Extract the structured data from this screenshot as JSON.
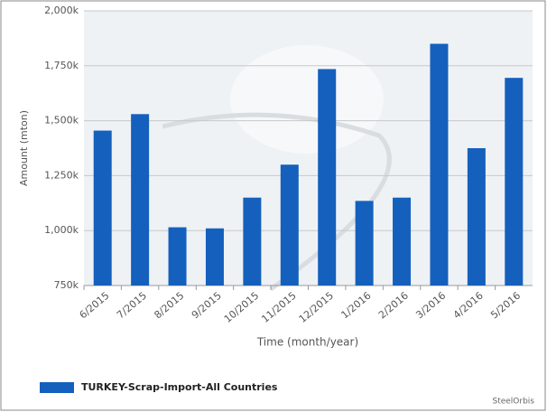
{
  "chart_data": {
    "type": "bar",
    "x_label": "Time (month/year)",
    "y_label": "Amount (mton)",
    "categories": [
      "6/2015",
      "7/2015",
      "8/2015",
      "9/2015",
      "10/2015",
      "11/2015",
      "12/2015",
      "1/2016",
      "2/2016",
      "3/2016",
      "4/2016",
      "5/2016"
    ],
    "series": [
      {
        "name": "TURKEY-Scrap-Import-All Countries",
        "color": "#1560bd",
        "values": [
          1455000,
          1530000,
          1015000,
          1010000,
          1150000,
          1300000,
          1735000,
          1135000,
          1150000,
          1850000,
          1375000,
          1695000
        ]
      }
    ],
    "ylim": [
      750000,
      2000000
    ],
    "yticks": [
      {
        "value": 750000,
        "label": "750k"
      },
      {
        "value": 1000000,
        "label": "1,000k"
      },
      {
        "value": 1250000,
        "label": "1,250k"
      },
      {
        "value": 1500000,
        "label": "1,500k"
      },
      {
        "value": 1750000,
        "label": "1,750k"
      },
      {
        "value": 2000000,
        "label": "2,000k"
      }
    ],
    "grid": true,
    "legend": "bottom-left",
    "credit": "SteelOrbis"
  }
}
